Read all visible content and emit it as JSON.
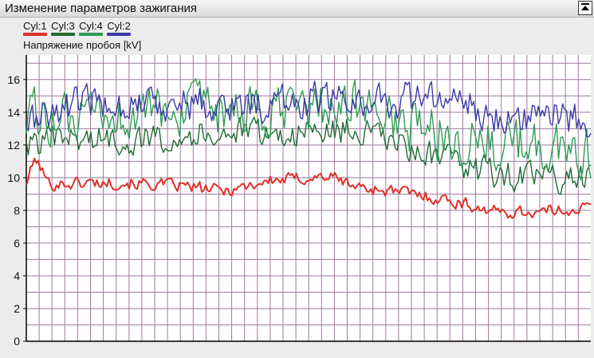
{
  "window": {
    "title": "Изменение параметров зажигания",
    "collapse_icon": "collapse-up-icon"
  },
  "colors": {
    "plot_background": "#ffffff",
    "grid": "#9c7a9c",
    "axis": "#000000"
  },
  "chart_data": {
    "type": "line",
    "ylabel": "Напряжение пробоя [kV]",
    "ylim": [
      0,
      17.5
    ],
    "yticks": [
      0,
      2,
      4,
      6,
      8,
      10,
      12,
      14,
      16
    ],
    "grid": true,
    "legend_position": "top-left",
    "x_samples": 280,
    "series": [
      {
        "name": "Cyl:1",
        "color": "#e0302a",
        "segments": [
          [
            0,
            9.7
          ],
          [
            12,
            11.2
          ],
          [
            30,
            9.6
          ],
          [
            80,
            9.7
          ],
          [
            130,
            9.7
          ],
          [
            200,
            9.5
          ],
          [
            260,
            9.2
          ],
          [
            320,
            9.8
          ],
          [
            400,
            10.1
          ],
          [
            440,
            9.4
          ],
          [
            500,
            9.1
          ],
          [
            560,
            8.6
          ],
          [
            620,
            7.9
          ],
          [
            680,
            7.9
          ],
          [
            745,
            8.2
          ]
        ],
        "noise": 0.35
      },
      {
        "name": "Cyl:3",
        "color": "#1f6b35",
        "segments": [
          [
            0,
            12.0
          ],
          [
            60,
            12.4
          ],
          [
            140,
            12.3
          ],
          [
            200,
            12.6
          ],
          [
            260,
            12.8
          ],
          [
            330,
            12.6
          ],
          [
            380,
            12.8
          ],
          [
            440,
            12.9
          ],
          [
            500,
            11.8
          ],
          [
            560,
            11.0
          ],
          [
            600,
            10.4
          ],
          [
            660,
            10.0
          ],
          [
            745,
            10.0
          ]
        ],
        "noise": 0.8
      },
      {
        "name": "Cyl:4",
        "color": "#2e9b55",
        "segments": [
          [
            0,
            14.0
          ],
          [
            60,
            13.3
          ],
          [
            140,
            13.8
          ],
          [
            200,
            14.2
          ],
          [
            260,
            13.8
          ],
          [
            330,
            13.9
          ],
          [
            380,
            14.3
          ],
          [
            440,
            14.5
          ],
          [
            500,
            13.2
          ],
          [
            560,
            12.6
          ],
          [
            620,
            12.0
          ],
          [
            700,
            11.8
          ],
          [
            745,
            11.5
          ]
        ],
        "noise": 1.4
      },
      {
        "name": "Cyl:2",
        "color": "#3c3aa5",
        "segments": [
          [
            0,
            13.3
          ],
          [
            60,
            14.5
          ],
          [
            140,
            14.6
          ],
          [
            200,
            14.6
          ],
          [
            260,
            14.4
          ],
          [
            330,
            14.5
          ],
          [
            380,
            14.8
          ],
          [
            440,
            14.7
          ],
          [
            500,
            14.8
          ],
          [
            560,
            14.8
          ],
          [
            620,
            13.8
          ],
          [
            680,
            13.8
          ],
          [
            745,
            13.5
          ]
        ],
        "noise": 1.0
      }
    ]
  }
}
